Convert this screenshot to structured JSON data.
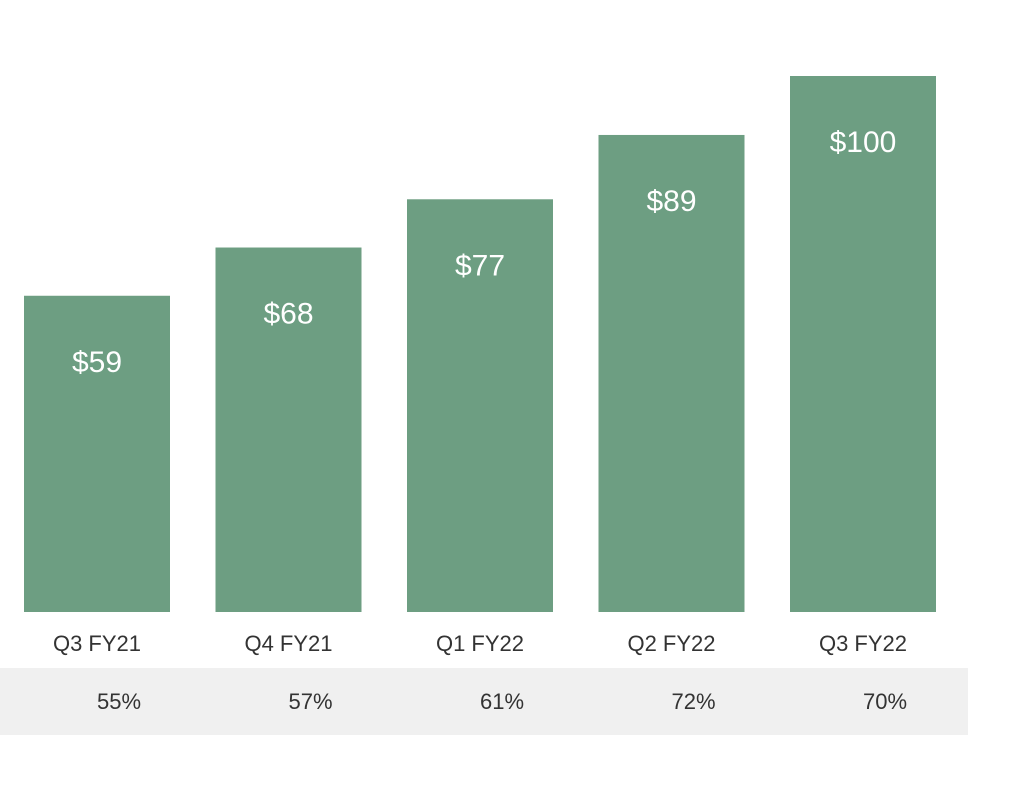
{
  "chart_data": {
    "type": "bar",
    "categories": [
      "Q3 FY21",
      "Q4 FY21",
      "Q1 FY22",
      "Q2 FY22",
      "Q3 FY22"
    ],
    "values": [
      59,
      68,
      77,
      89,
      100
    ],
    "value_labels": [
      "$59",
      "$68",
      "$77",
      "$89",
      "$100"
    ],
    "secondary_row": {
      "values": [
        55,
        57,
        61,
        72,
        70
      ],
      "labels": [
        "55%",
        "57%",
        "61%",
        "72%",
        "70%"
      ]
    },
    "ylim": [
      0,
      100
    ],
    "title": "",
    "xlabel": "",
    "ylabel": "",
    "grid": false,
    "colors": {
      "bar": "#6d9e82",
      "bar_label": "#ffffff",
      "axis_text": "#333333",
      "band": "#f0f0f0"
    }
  }
}
